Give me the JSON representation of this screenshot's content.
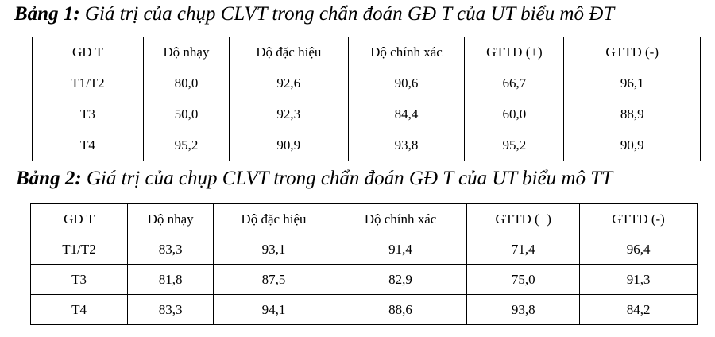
{
  "tables": [
    {
      "label": "Bảng 1:",
      "caption": "Giá trị của chụp CLVT trong chẩn đoán GĐ T của UT biểu mô ĐT",
      "header": [
        "GĐ T",
        "Độ nhạy",
        "Độ đặc hiệu",
        "Độ chính xác",
        "GTTĐ (+)",
        "GTTĐ (-)"
      ],
      "rows": [
        [
          "T1/T2",
          "80,0",
          "92,6",
          "90,6",
          "66,7",
          "96,1"
        ],
        [
          "T3",
          "50,0",
          "92,3",
          "84,4",
          "60,0",
          "88,9"
        ],
        [
          "T4",
          "95,2",
          "90,9",
          "93,8",
          "95,2",
          "90,9"
        ]
      ]
    },
    {
      "label": "Bảng 2:",
      "caption": "Giá trị của chụp CLVT trong chẩn đoán GĐ T của UT biểu mô TT",
      "header": [
        "GĐ T",
        "Độ nhạy",
        "Độ đặc hiệu",
        "Độ chính xác",
        "GTTĐ (+)",
        "GTTĐ (-)"
      ],
      "rows": [
        [
          "T1/T2",
          "83,3",
          "93,1",
          "91,4",
          "71,4",
          "96,4"
        ],
        [
          "T3",
          "81,8",
          "87,5",
          "82,9",
          "75,0",
          "91,3"
        ],
        [
          "T4",
          "83,3",
          "94,1",
          "88,6",
          "93,8",
          "84,2"
        ]
      ]
    }
  ]
}
